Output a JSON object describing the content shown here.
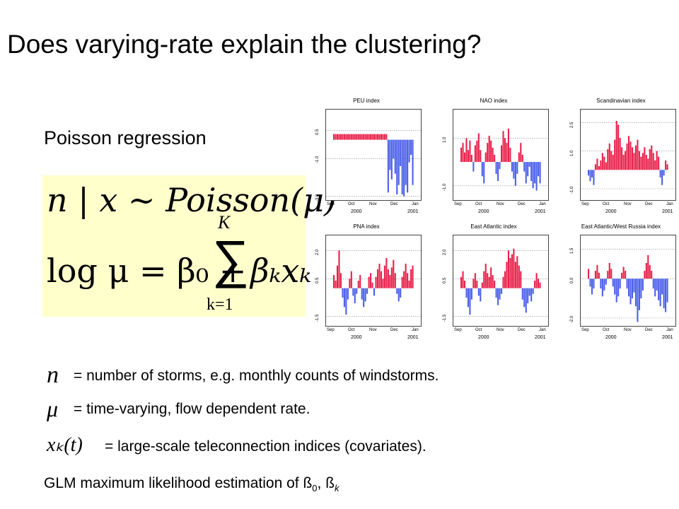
{
  "slide": {
    "title": "Does varying-rate explain the clustering?",
    "subtitle": "Poisson regression",
    "equation_box_color": "#ffffcc",
    "equation1": "n | x ~ Poisson(μ)",
    "equation2_lhs": "log μ = β₀ +",
    "sum_symbol": "∑",
    "sum_upper": "K",
    "sum_lower": "k=1",
    "sum_term": "βₖxₖ",
    "definitions": [
      {
        "symbol": "n",
        "text": "= number of storms, e.g. monthly counts of windstorms."
      },
      {
        "symbol": "μ",
        "text": "= time-varying, flow dependent rate."
      },
      {
        "symbol": "xₖ(t)",
        "text": "= large-scale teleconnection indices (covariates)."
      }
    ],
    "glm_text": "GLM maximum likelihood estimation of ß",
    "glm_sub0": "0",
    "glm_sep": ", ß",
    "glm_subk": "k"
  },
  "chart_data": [
    {
      "type": "bar",
      "title": "PEU index",
      "yticks": [
        "-3.0",
        "-1.0",
        "0.5"
      ],
      "xticks": [
        "Sep",
        "Oct",
        "Nov",
        "Dec",
        "Jan"
      ],
      "years": [
        "2000",
        "2001"
      ],
      "positive_color": "#e8204a",
      "negative_color": "#4a5fe8"
    },
    {
      "type": "bar",
      "title": "NAO index",
      "yticks": [
        "-1.0",
        "1.0"
      ],
      "xticks": [
        "Sep",
        "Oct",
        "Nov",
        "Dec",
        "Jan"
      ],
      "years": [
        "2000",
        "2001"
      ],
      "positive_color": "#e8204a",
      "negative_color": "#4a5fe8"
    },
    {
      "type": "bar",
      "title": "Scandinavian index",
      "yticks": [
        "-1.0",
        "1.0",
        "2.5"
      ],
      "xticks": [
        "Sep",
        "Oct",
        "Nov",
        "Dec",
        "Jan"
      ],
      "years": [
        "2000",
        "2001"
      ],
      "positive_color": "#e8204a",
      "negative_color": "#4a5fe8"
    },
    {
      "type": "bar",
      "title": "PNA index",
      "yticks": [
        "-1.5",
        "0.5",
        "2.0"
      ],
      "xticks": [
        "Sep",
        "Oct",
        "Nov",
        "Dec",
        "Jan"
      ],
      "years": [
        "2000",
        "2001"
      ],
      "positive_color": "#e8204a",
      "negative_color": "#4a5fe8"
    },
    {
      "type": "bar",
      "title": "East Atlantic index",
      "yticks": [
        "-1.5",
        "0.5",
        "2.0"
      ],
      "xticks": [
        "Sep",
        "Oct",
        "Nov",
        "Dec",
        "Jan"
      ],
      "years": [
        "2000",
        "2001"
      ],
      "positive_color": "#e8204a",
      "negative_color": "#4a5fe8"
    },
    {
      "type": "bar",
      "title": "East Atlantic/West Russia index",
      "yticks": [
        "-2.0",
        "0.0",
        "1.5"
      ],
      "xticks": [
        "Sep",
        "Oct",
        "Nov",
        "Dec",
        "Jan"
      ],
      "years": [
        "2000",
        "2001"
      ],
      "positive_color": "#e8204a",
      "negative_color": "#4a5fe8"
    }
  ]
}
